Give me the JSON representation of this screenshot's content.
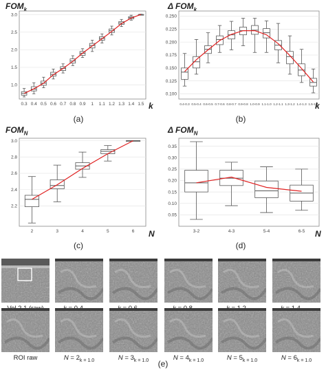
{
  "chart_data": [
    {
      "id": "a",
      "type": "box",
      "title": "FOM_k",
      "panel_label": "(a)",
      "xlabel": "k",
      "categories": [
        "0.3",
        "0.4",
        "0.5",
        "0.6",
        "0.7",
        "0.8",
        "0.9",
        "1",
        "1.1",
        "1.2",
        "1.3",
        "1.4",
        "1.5"
      ],
      "ylim": [
        0.6,
        3.1
      ],
      "yticks": [
        "1.0",
        "1.5",
        "2.0",
        "2.5",
        "3.0"
      ],
      "boxes": [
        {
          "whislo": 0.66,
          "q1": 0.71,
          "med": 0.76,
          "q3": 0.81,
          "whishi": 0.9
        },
        {
          "whislo": 0.75,
          "q1": 0.83,
          "med": 0.88,
          "q3": 0.95,
          "whishi": 1.06
        },
        {
          "whislo": 0.92,
          "q1": 0.99,
          "med": 1.05,
          "q3": 1.11,
          "whishi": 1.22
        },
        {
          "whislo": 1.17,
          "q1": 1.25,
          "med": 1.3,
          "q3": 1.36,
          "whishi": 1.45
        },
        {
          "whislo": 1.34,
          "q1": 1.41,
          "med": 1.47,
          "q3": 1.52,
          "whishi": 1.6
        },
        {
          "whislo": 1.55,
          "q1": 1.62,
          "med": 1.68,
          "q3": 1.74,
          "whishi": 1.83
        },
        {
          "whislo": 1.78,
          "q1": 1.84,
          "med": 1.9,
          "q3": 1.95,
          "whishi": 2.03
        },
        {
          "whislo": 1.95,
          "q1": 2.05,
          "med": 2.12,
          "q3": 2.18,
          "whishi": 2.27
        },
        {
          "whislo": 2.19,
          "q1": 2.27,
          "med": 2.32,
          "q3": 2.37,
          "whishi": 2.45
        },
        {
          "whislo": 2.42,
          "q1": 2.49,
          "med": 2.54,
          "q3": 2.59,
          "whishi": 2.67
        },
        {
          "whislo": 2.66,
          "q1": 2.72,
          "med": 2.76,
          "q3": 2.8,
          "whishi": 2.86
        },
        {
          "whislo": 2.84,
          "q1": 2.88,
          "med": 2.91,
          "q3": 2.94,
          "whishi": 2.98
        },
        {
          "whislo": 2.99,
          "q1": 3.0,
          "med": 3.0,
          "q3": 3.0,
          "whishi": 3.01
        }
      ],
      "trend": [
        0.76,
        0.89,
        1.05,
        1.29,
        1.47,
        1.67,
        1.9,
        2.11,
        2.31,
        2.52,
        2.74,
        2.9,
        3.0
      ]
    },
    {
      "id": "b",
      "type": "box",
      "title": "Δ FOM_k",
      "panel_label": "(b)",
      "xlabel": "k",
      "categories": [
        "0.4-0.3",
        "0.5-0.4",
        "0.6-0.5",
        "0.7-0.6",
        "0.8-0.7",
        "0.9-0.8",
        "1.0-0.9",
        "1.1-1.0",
        "1.2-1.1",
        "1.3-1.2",
        "1.4-1.3",
        "1.5-1.4"
      ],
      "ylim": [
        0.09,
        0.26
      ],
      "yticks": [
        "0.100",
        "0.125",
        "0.150",
        "0.175",
        "0.200",
        "0.225",
        "0.250"
      ],
      "boxes": [
        {
          "whislo": 0.115,
          "q1": 0.128,
          "med": 0.142,
          "q3": 0.15,
          "whishi": 0.178
        },
        {
          "whislo": 0.138,
          "q1": 0.15,
          "med": 0.162,
          "q3": 0.172,
          "whishi": 0.205
        },
        {
          "whislo": 0.16,
          "q1": 0.178,
          "med": 0.186,
          "q3": 0.193,
          "whishi": 0.218
        },
        {
          "whislo": 0.18,
          "q1": 0.195,
          "med": 0.205,
          "q3": 0.212,
          "whishi": 0.232
        },
        {
          "whislo": 0.185,
          "q1": 0.206,
          "med": 0.214,
          "q3": 0.222,
          "whishi": 0.24
        },
        {
          "whislo": 0.193,
          "q1": 0.214,
          "med": 0.222,
          "q3": 0.229,
          "whishi": 0.246
        },
        {
          "whislo": 0.18,
          "q1": 0.215,
          "med": 0.223,
          "q3": 0.232,
          "whishi": 0.246
        },
        {
          "whislo": 0.18,
          "q1": 0.208,
          "med": 0.218,
          "q3": 0.226,
          "whishi": 0.241
        },
        {
          "whislo": 0.16,
          "q1": 0.185,
          "med": 0.194,
          "q3": 0.203,
          "whishi": 0.236
        },
        {
          "whislo": 0.138,
          "q1": 0.158,
          "med": 0.172,
          "q3": 0.182,
          "whishi": 0.212
        },
        {
          "whislo": 0.122,
          "q1": 0.135,
          "med": 0.146,
          "q3": 0.158,
          "whishi": 0.186
        },
        {
          "whislo": 0.102,
          "q1": 0.115,
          "med": 0.122,
          "q3": 0.13,
          "whishi": 0.148
        }
      ],
      "trend": [
        0.143,
        0.166,
        0.185,
        0.203,
        0.215,
        0.222,
        0.222,
        0.214,
        0.197,
        0.174,
        0.149,
        0.123
      ]
    },
    {
      "id": "c",
      "type": "box",
      "title": "FOM_N",
      "panel_label": "(c)",
      "xlabel": "N",
      "categories": [
        "2",
        "3",
        "4",
        "5",
        "6"
      ],
      "ylim": [
        1.95,
        3.03
      ],
      "yticks": [
        "2.2",
        "2.4",
        "2.6",
        "2.8",
        "3.0"
      ],
      "boxes": [
        {
          "whislo": 1.99,
          "q1": 2.19,
          "med": 2.28,
          "q3": 2.33,
          "whishi": 2.56
        },
        {
          "whislo": 2.25,
          "q1": 2.41,
          "med": 2.45,
          "q3": 2.52,
          "whishi": 2.7
        },
        {
          "whislo": 2.55,
          "q1": 2.65,
          "med": 2.69,
          "q3": 2.73,
          "whishi": 2.86
        },
        {
          "whislo": 2.75,
          "q1": 2.84,
          "med": 2.87,
          "q3": 2.89,
          "whishi": 2.94
        },
        {
          "whislo": 3.0,
          "q1": 3.0,
          "med": 3.0,
          "q3": 3.0,
          "whishi": 3.0
        }
      ],
      "trend": [
        2.28,
        2.46,
        2.66,
        2.84,
        3.0
      ]
    },
    {
      "id": "d",
      "type": "box",
      "title": "Δ FOM_N",
      "panel_label": "(d)",
      "xlabel": "N",
      "categories": [
        "3-2",
        "4-3",
        "5-4",
        "6-5"
      ],
      "ylim": [
        0.0,
        0.385
      ],
      "yticks": [
        "0.05",
        "0.10",
        "0.15",
        "0.20",
        "0.25",
        "0.30",
        "0.35"
      ],
      "boxes": [
        {
          "whislo": 0.03,
          "q1": 0.15,
          "med": 0.19,
          "q3": 0.245,
          "whishi": 0.37
        },
        {
          "whislo": 0.09,
          "q1": 0.178,
          "med": 0.21,
          "q3": 0.245,
          "whishi": 0.28
        },
        {
          "whislo": 0.06,
          "q1": 0.125,
          "med": 0.155,
          "q3": 0.198,
          "whishi": 0.26
        },
        {
          "whislo": 0.07,
          "q1": 0.11,
          "med": 0.145,
          "q3": 0.18,
          "whishi": 0.25
        }
      ],
      "trend": [
        0.19,
        0.215,
        0.17,
        0.153
      ]
    }
  ],
  "panel_e": {
    "label": "(e)",
    "row1": [
      {
        "pre": "Vol 2.1 (raw)",
        "var": "",
        "val": "",
        "sub": ""
      },
      {
        "pre": "",
        "var": "k",
        "val": " = 0.4",
        "sub": "N = 3"
      },
      {
        "pre": "",
        "var": "k",
        "val": " = 0.6",
        "sub": "N = 3"
      },
      {
        "pre": "",
        "var": "k",
        "val": " = 0.8",
        "sub": "N = 3"
      },
      {
        "pre": "",
        "var": "k",
        "val": " = 1.2",
        "sub": "N = 3"
      },
      {
        "pre": "",
        "var": "k",
        "val": " = 1.4",
        "sub": "N = 3"
      }
    ],
    "row2": [
      {
        "pre": "ROI raw",
        "var": "",
        "val": "",
        "sub": ""
      },
      {
        "pre": "",
        "var": "N",
        "val": " = 2",
        "sub": "k = 1.0"
      },
      {
        "pre": "",
        "var": "N",
        "val": " = 3",
        "sub": "k = 1.0"
      },
      {
        "pre": "",
        "var": "N",
        "val": " = 4",
        "sub": "k = 1.0"
      },
      {
        "pre": "",
        "var": "N",
        "val": " = 5",
        "sub": "k = 1.0"
      },
      {
        "pre": "",
        "var": "N",
        "val": " = 6",
        "sub": "k = 1.0"
      }
    ]
  },
  "colors": {
    "trend": "#e02020",
    "box": "#555555",
    "grid": "#e6e6e6",
    "axis": "#888888"
  }
}
